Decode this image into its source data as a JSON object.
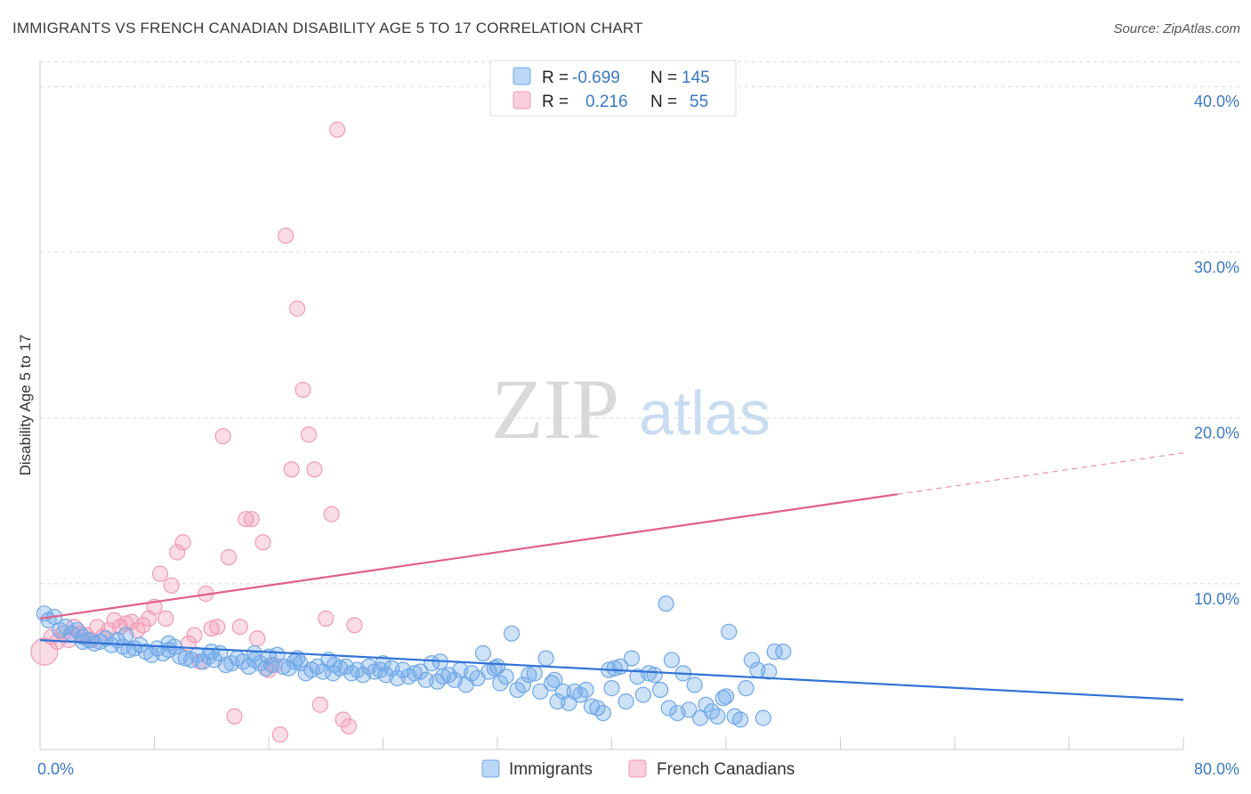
{
  "title": "IMMIGRANTS VS FRENCH CANADIAN DISABILITY AGE 5 TO 17 CORRELATION CHART",
  "source": "Source: ZipAtlas.com",
  "watermark": {
    "zip": "ZIP",
    "atlas": "atlas"
  },
  "colors": {
    "blue": "#6fa8e8",
    "blue_line": "#2f72d6",
    "pink": "#f19ab5",
    "pink_line": "#e0608a",
    "tick": "#3a78c8"
  },
  "legend": {
    "rows": [
      {
        "r_label": "R =",
        "r_value": "-0.699",
        "n_label": "N =",
        "n_value": "145",
        "color": "#6fa8e8"
      },
      {
        "r_label": "R =",
        "r_value": "0.216",
        "n_label": "N =",
        "n_value": "55",
        "color": "#f19ab5"
      }
    ]
  },
  "bottom_legend": [
    "Immigrants",
    "French Canadians"
  ],
  "chart_data": {
    "type": "scatter",
    "title": "IMMIGRANTS VS FRENCH CANADIAN DISABILITY AGE 5 TO 17 CORRELATION CHART",
    "xlabel": "",
    "ylabel": "Disability Age 5 to 17",
    "xlim": [
      0,
      80
    ],
    "ylim": [
      0,
      42
    ],
    "x_tick_labels": [
      "0.0%",
      "80.0%"
    ],
    "y_tick_labels": [
      "10.0%",
      "20.0%",
      "30.0%",
      "40.0%"
    ],
    "y_ticks": [
      10,
      20,
      30,
      40
    ],
    "grid": true,
    "legend_position": "top-center",
    "series": [
      {
        "name": "Immigrants",
        "color": "#6fa8e8",
        "trend": {
          "x": [
            0,
            80
          ],
          "y": [
            6.6,
            3.0
          ]
        },
        "points": [
          [
            0.3,
            8.2
          ],
          [
            0.6,
            7.8
          ],
          [
            1.0,
            8.0
          ],
          [
            1.4,
            7.2
          ],
          [
            1.8,
            7.4
          ],
          [
            2.2,
            7.0
          ],
          [
            2.6,
            7.2
          ],
          [
            3.0,
            6.8
          ],
          [
            3.4,
            6.6
          ],
          [
            3.8,
            6.4
          ],
          [
            4.2,
            6.5
          ],
          [
            4.6,
            6.7
          ],
          [
            5.0,
            6.3
          ],
          [
            5.4,
            6.6
          ],
          [
            5.8,
            6.2
          ],
          [
            6.2,
            6.0
          ],
          [
            6.6,
            6.1
          ],
          [
            7.0,
            6.3
          ],
          [
            7.4,
            5.9
          ],
          [
            7.8,
            5.7
          ],
          [
            8.2,
            6.1
          ],
          [
            8.6,
            5.8
          ],
          [
            9.0,
            6.0
          ],
          [
            9.4,
            6.2
          ],
          [
            9.8,
            5.6
          ],
          [
            10.2,
            5.5
          ],
          [
            10.6,
            5.4
          ],
          [
            11.0,
            5.7
          ],
          [
            11.4,
            5.3
          ],
          [
            11.8,
            5.6
          ],
          [
            12.2,
            5.4
          ],
          [
            12.6,
            5.8
          ],
          [
            13.0,
            5.1
          ],
          [
            13.4,
            5.2
          ],
          [
            13.8,
            5.5
          ],
          [
            14.2,
            5.3
          ],
          [
            14.6,
            5.0
          ],
          [
            15.0,
            5.4
          ],
          [
            15.4,
            5.2
          ],
          [
            15.8,
            4.9
          ],
          [
            16.2,
            5.1
          ],
          [
            16.6,
            5.7
          ],
          [
            17.0,
            5.0
          ],
          [
            17.4,
            4.9
          ],
          [
            17.8,
            5.3
          ],
          [
            18.2,
            5.2
          ],
          [
            18.6,
            4.6
          ],
          [
            19.0,
            4.8
          ],
          [
            19.4,
            5.0
          ],
          [
            19.8,
            4.7
          ],
          [
            20.2,
            5.4
          ],
          [
            20.6,
            5.1
          ],
          [
            21.0,
            4.9
          ],
          [
            21.4,
            5.0
          ],
          [
            21.8,
            4.6
          ],
          [
            22.2,
            4.8
          ],
          [
            22.6,
            4.5
          ],
          [
            23.0,
            5.0
          ],
          [
            23.4,
            4.7
          ],
          [
            23.8,
            4.8
          ],
          [
            24.2,
            4.5
          ],
          [
            24.6,
            4.9
          ],
          [
            25.0,
            4.3
          ],
          [
            25.4,
            4.8
          ],
          [
            25.8,
            4.4
          ],
          [
            26.2,
            4.6
          ],
          [
            26.6,
            4.7
          ],
          [
            27.0,
            4.2
          ],
          [
            27.4,
            5.2
          ],
          [
            27.8,
            4.1
          ],
          [
            28.2,
            4.4
          ],
          [
            28.6,
            4.5
          ],
          [
            29.0,
            4.2
          ],
          [
            29.4,
            4.8
          ],
          [
            29.8,
            3.9
          ],
          [
            30.2,
            4.6
          ],
          [
            30.6,
            4.3
          ],
          [
            31.0,
            5.8
          ],
          [
            31.4,
            4.7
          ],
          [
            31.8,
            4.9
          ],
          [
            32.2,
            4.0
          ],
          [
            32.6,
            4.4
          ],
          [
            33.0,
            7.0
          ],
          [
            33.4,
            3.6
          ],
          [
            33.8,
            3.9
          ],
          [
            34.2,
            4.5
          ],
          [
            34.6,
            4.6
          ],
          [
            35.0,
            3.5
          ],
          [
            35.4,
            5.5
          ],
          [
            35.8,
            4.0
          ],
          [
            36.2,
            2.9
          ],
          [
            36.6,
            3.5
          ],
          [
            37.0,
            2.8
          ],
          [
            37.4,
            3.5
          ],
          [
            37.8,
            3.3
          ],
          [
            38.2,
            3.6
          ],
          [
            38.6,
            2.6
          ],
          [
            39.0,
            2.5
          ],
          [
            39.4,
            2.2
          ],
          [
            39.8,
            4.8
          ],
          [
            40.2,
            4.9
          ],
          [
            40.6,
            5.0
          ],
          [
            41.0,
            2.9
          ],
          [
            41.4,
            5.5
          ],
          [
            41.8,
            4.4
          ],
          [
            42.2,
            3.3
          ],
          [
            42.6,
            4.6
          ],
          [
            43.0,
            4.5
          ],
          [
            43.4,
            3.6
          ],
          [
            43.8,
            8.8
          ],
          [
            44.2,
            5.4
          ],
          [
            44.6,
            2.2
          ],
          [
            45.0,
            4.6
          ],
          [
            45.4,
            2.4
          ],
          [
            45.8,
            3.9
          ],
          [
            46.2,
            1.9
          ],
          [
            46.6,
            2.7
          ],
          [
            47.0,
            2.3
          ],
          [
            47.4,
            2.0
          ],
          [
            47.8,
            3.1
          ],
          [
            48.2,
            7.1
          ],
          [
            48.6,
            2.0
          ],
          [
            49.0,
            1.8
          ],
          [
            49.4,
            3.7
          ],
          [
            49.8,
            5.4
          ],
          [
            50.2,
            4.8
          ],
          [
            50.6,
            1.9
          ],
          [
            51.0,
            4.7
          ],
          [
            51.4,
            5.9
          ],
          [
            20.5,
            4.6
          ],
          [
            12.0,
            5.9
          ],
          [
            16.0,
            5.6
          ],
          [
            24.0,
            5.2
          ],
          [
            28.0,
            5.3
          ],
          [
            32.0,
            5.0
          ],
          [
            36.0,
            4.2
          ],
          [
            40.0,
            3.7
          ],
          [
            44.0,
            2.5
          ],
          [
            48.0,
            3.2
          ],
          [
            52.0,
            5.9
          ],
          [
            3.0,
            6.5
          ],
          [
            6.0,
            6.9
          ],
          [
            9.0,
            6.4
          ],
          [
            15.0,
            5.8
          ],
          [
            18.0,
            5.5
          ]
        ]
      },
      {
        "name": "French Canadians",
        "color": "#f19ab5",
        "trend": {
          "x": [
            0,
            60
          ],
          "y": [
            7.9,
            15.4
          ],
          "dashed_to": {
            "x": 80,
            "y": 17.9
          }
        },
        "points": [
          [
            0.3,
            5.9
          ],
          [
            0.8,
            6.8
          ],
          [
            1.2,
            6.5
          ],
          [
            1.6,
            7.0
          ],
          [
            2.0,
            6.6
          ],
          [
            2.4,
            7.4
          ],
          [
            2.8,
            7.0
          ],
          [
            3.2,
            6.9
          ],
          [
            3.6,
            6.6
          ],
          [
            4.0,
            7.4
          ],
          [
            4.4,
            6.8
          ],
          [
            4.8,
            7.2
          ],
          [
            5.2,
            7.8
          ],
          [
            5.6,
            7.4
          ],
          [
            6.0,
            7.6
          ],
          [
            6.4,
            7.7
          ],
          [
            6.8,
            7.2
          ],
          [
            7.2,
            7.5
          ],
          [
            7.6,
            7.9
          ],
          [
            8.0,
            8.6
          ],
          [
            8.4,
            10.6
          ],
          [
            8.8,
            7.9
          ],
          [
            9.2,
            9.9
          ],
          [
            9.6,
            11.9
          ],
          [
            10.0,
            12.5
          ],
          [
            10.4,
            6.4
          ],
          [
            10.8,
            6.9
          ],
          [
            11.2,
            5.3
          ],
          [
            11.6,
            9.4
          ],
          [
            12.0,
            7.3
          ],
          [
            12.4,
            7.4
          ],
          [
            12.8,
            18.9
          ],
          [
            13.2,
            11.6
          ],
          [
            13.6,
            2.0
          ],
          [
            14.0,
            7.4
          ],
          [
            14.4,
            13.9
          ],
          [
            14.8,
            13.9
          ],
          [
            15.2,
            6.7
          ],
          [
            15.6,
            12.5
          ],
          [
            16.0,
            4.8
          ],
          [
            16.4,
            5.1
          ],
          [
            16.8,
            0.9
          ],
          [
            17.2,
            31.0
          ],
          [
            17.6,
            16.9
          ],
          [
            18.0,
            26.6
          ],
          [
            18.4,
            21.7
          ],
          [
            18.8,
            19.0
          ],
          [
            19.2,
            16.9
          ],
          [
            19.6,
            2.7
          ],
          [
            20.0,
            7.9
          ],
          [
            20.4,
            14.2
          ],
          [
            20.8,
            37.4
          ],
          [
            21.2,
            1.8
          ],
          [
            21.6,
            1.4
          ],
          [
            22.0,
            7.5
          ]
        ]
      }
    ]
  }
}
